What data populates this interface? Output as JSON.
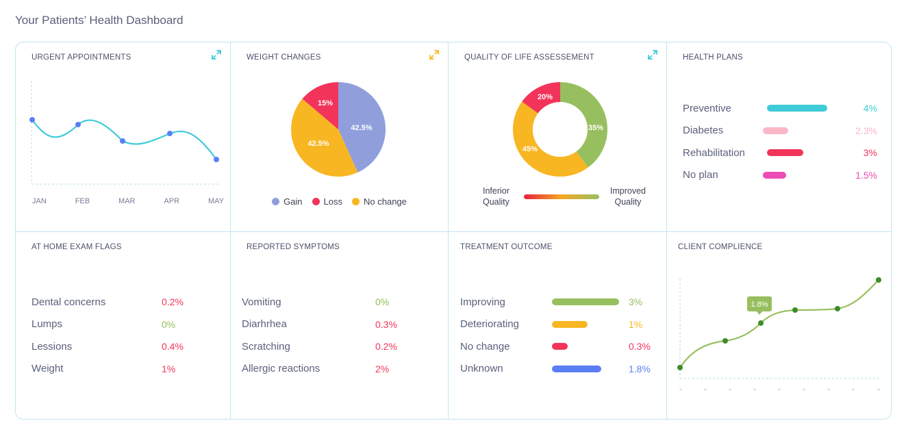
{
  "page_title": "Your Patients’ Health Dashboard",
  "urgent": {
    "title": "URGENT APPOINTMENTS",
    "months": [
      "JAN",
      "FEB",
      "MAR",
      "APR",
      "MAY"
    ]
  },
  "weight": {
    "title": "WEIGHT CHANGES",
    "slices": [
      {
        "name": "Gain",
        "label": "42.5%",
        "color": "#909fdc"
      },
      {
        "name": "Loss",
        "label": "15%",
        "color": "#f2345a"
      },
      {
        "name": "No change",
        "label": "42.5%",
        "color": "#f8b623"
      }
    ]
  },
  "qol": {
    "title": "QUALITY OF LIFE ASSESSEMENT",
    "segments": [
      {
        "label": "35%",
        "color": "#98bf5f"
      },
      {
        "label": "45%",
        "color": "#f8b623"
      },
      {
        "label": "20%",
        "color": "#f2345a"
      }
    ],
    "low_line1": "Inferior",
    "low_line2": "Quality",
    "high_line1": "Improved",
    "high_line2": "Quality"
  },
  "health_plans": {
    "title": "HEALTH PLANS",
    "rows": [
      {
        "label": "Preventive",
        "value": "4%",
        "fraction": 0.78,
        "color": "#3fcbd8"
      },
      {
        "label": "Diabetes",
        "value": "2.3%",
        "fraction": 0.34,
        "color": "#f9b7c8"
      },
      {
        "label": "Rehabilitation",
        "value": "3%",
        "fraction": 0.47,
        "color": "#f2345a"
      },
      {
        "label": "No plan",
        "value": "1.5%",
        "fraction": 0.32,
        "color": "#eb4db5"
      }
    ]
  },
  "home_exam": {
    "title": "AT HOME EXAM FLAGS",
    "rows": [
      {
        "label": "Dental concerns",
        "value": "0.2%",
        "color": "#f2345a"
      },
      {
        "label": "Lumps",
        "value": "0%",
        "color": "#8fbf5a"
      },
      {
        "label": "Lessions",
        "value": "0.4%",
        "color": "#f2345a"
      },
      {
        "label": "Weight",
        "value": "1%",
        "color": "#f2345a"
      }
    ]
  },
  "symptoms": {
    "title": "REPORTED SYMPTOMS",
    "rows": [
      {
        "label": "Vomiting",
        "value": "0%",
        "color": "#8fbf5a"
      },
      {
        "label": "Diarhrhea",
        "value": "0.3%",
        "color": "#f2345a"
      },
      {
        "label": "Scratching",
        "value": "0.2%",
        "color": "#f2345a"
      },
      {
        "label": "Allergic reactions",
        "value": "2%",
        "color": "#f2345a"
      }
    ]
  },
  "treatment": {
    "title": "TREATMENT OUTCOME",
    "rows": [
      {
        "label": "Improving",
        "value": "3%",
        "fraction": 0.98,
        "color": "#98bf5f"
      },
      {
        "label": "Deteriorating",
        "value": "1%",
        "fraction": 0.52,
        "color": "#f8b623"
      },
      {
        "label": "No change",
        "value": "0.3%",
        "fraction": 0.23,
        "color": "#f2345a"
      },
      {
        "label": "Unknown",
        "value": "1.8%",
        "fraction": 0.72,
        "color": "#5a7ef5"
      }
    ]
  },
  "compliance": {
    "title": "CLIENT COMPLIENCE",
    "tooltip": "1.8%"
  }
}
